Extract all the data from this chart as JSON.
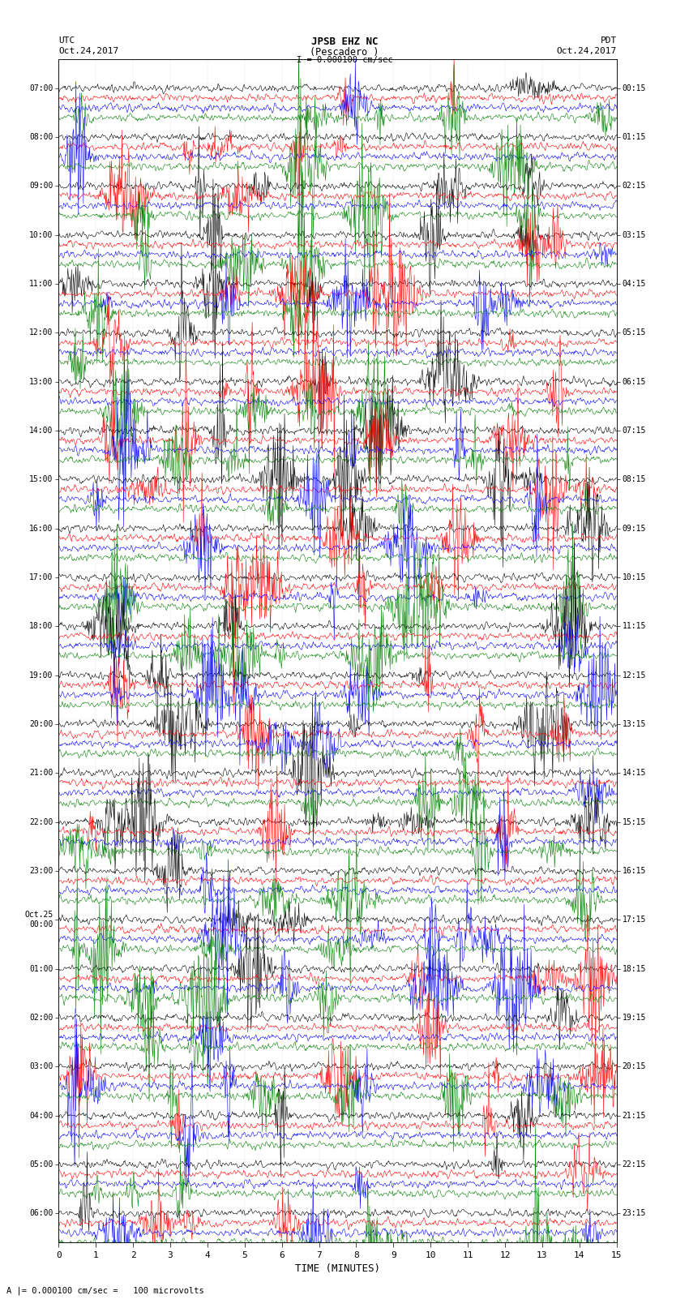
{
  "title_line1": "JPSB EHZ NC",
  "title_line2": "(Pescadero )",
  "scale_label": "I = 0.000100 cm/sec",
  "left_label_top": "UTC",
  "left_label_date": "Oct.24,2017",
  "right_label_top": "PDT",
  "right_label_date": "Oct.24,2017",
  "bottom_label": "TIME (MINUTES)",
  "bottom_note": "A |= 0.000100 cm/sec =   100 microvolts",
  "utc_times": [
    "07:00",
    "08:00",
    "09:00",
    "10:00",
    "11:00",
    "12:00",
    "13:00",
    "14:00",
    "15:00",
    "16:00",
    "17:00",
    "18:00",
    "19:00",
    "20:00",
    "21:00",
    "22:00",
    "23:00",
    "Oct.25\n00:00",
    "01:00",
    "02:00",
    "03:00",
    "04:00",
    "05:00",
    "06:00"
  ],
  "pdt_times": [
    "00:15",
    "01:15",
    "02:15",
    "03:15",
    "04:15",
    "05:15",
    "06:15",
    "07:15",
    "08:15",
    "09:15",
    "10:15",
    "11:15",
    "12:15",
    "13:15",
    "14:15",
    "15:15",
    "16:15",
    "17:15",
    "18:15",
    "19:15",
    "20:15",
    "21:15",
    "22:15",
    "23:15"
  ],
  "num_hours": 23,
  "traces_per_hour": 4,
  "colors": [
    "black",
    "red",
    "blue",
    "green"
  ],
  "time_minutes_total": 15,
  "xlim": [
    0,
    15
  ],
  "xticks": [
    0,
    1,
    2,
    3,
    4,
    5,
    6,
    7,
    8,
    9,
    10,
    11,
    12,
    13,
    14,
    15
  ],
  "background_color": "white",
  "seed": 42
}
